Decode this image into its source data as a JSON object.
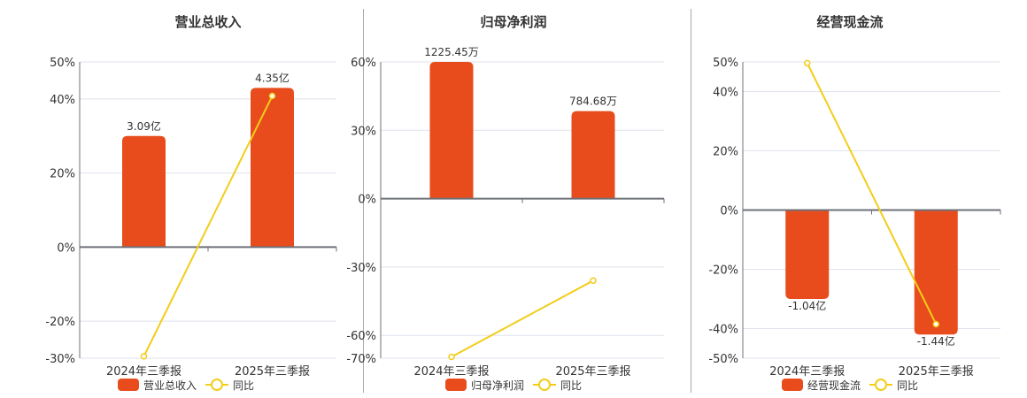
{
  "colors": {
    "bar": "#e84c1c",
    "line": "#f2cd1a",
    "grid": "#dfe3ee",
    "axis": "#6e7079",
    "text": "#333333",
    "divider": "#a8a8a8"
  },
  "panels": [
    {
      "title": "营业总收入",
      "legend": {
        "bar_label": "营业总收入",
        "line_label": "同比"
      },
      "x_labels": [
        "2024年三季报",
        "2025年三季报"
      ],
      "y_ticks": [
        "50%",
        "40%",
        "20%",
        "0%",
        "-20%",
        "-30%"
      ],
      "bar_labels": [
        "3.09亿",
        "4.35亿"
      ]
    },
    {
      "title": "归母净利润",
      "legend": {
        "bar_label": "归母净利润",
        "line_label": "同比"
      },
      "x_labels": [
        "2024年三季报",
        "2025年三季报"
      ],
      "y_ticks": [
        "60%",
        "30%",
        "0%",
        "-30%",
        "-60%",
        "-70%"
      ],
      "bar_labels": [
        "1225.45万",
        "784.68万"
      ]
    },
    {
      "title": "经营现金流",
      "legend": {
        "bar_label": "经营现金流",
        "line_label": "同比"
      },
      "x_labels": [
        "2024年三季报",
        "2025年三季报"
      ],
      "y_ticks": [
        "50%",
        "40%",
        "20%",
        "0%",
        "-20%",
        "-40%",
        "-50%"
      ],
      "bar_labels": [
        "-1.04亿",
        "-1.44亿"
      ]
    }
  ],
  "chart_data": [
    {
      "type": "bar+line",
      "title": "营业总收入",
      "categories": [
        "2024年三季报",
        "2025年三季报"
      ],
      "series": [
        {
          "name": "营业总收入",
          "type": "bar",
          "values": [
            3.09,
            4.35
          ],
          "unit": "亿",
          "labels": [
            "3.09亿",
            "4.35亿"
          ],
          "bar_height_pct_axis": [
            30,
            43
          ]
        },
        {
          "name": "同比",
          "type": "line",
          "values": [
            -29.5,
            40.8
          ],
          "unit": "%"
        }
      ],
      "ylim": [
        -30,
        50
      ],
      "yticks": [
        -30,
        -20,
        0,
        20,
        40,
        50
      ],
      "grid": true,
      "legend_position": "bottom"
    },
    {
      "type": "bar+line",
      "title": "归母净利润",
      "categories": [
        "2024年三季报",
        "2025年三季报"
      ],
      "series": [
        {
          "name": "归母净利润",
          "type": "bar",
          "values": [
            1225.45,
            784.68
          ],
          "unit": "万",
          "labels": [
            "1225.45万",
            "784.68万"
          ],
          "bar_height_pct_axis": [
            60,
            38.4
          ]
        },
        {
          "name": "同比",
          "type": "line",
          "values": [
            -69.4,
            -35.97
          ],
          "unit": "%"
        }
      ],
      "ylim": [
        -70,
        60
      ],
      "yticks": [
        -70,
        -60,
        -30,
        0,
        30,
        60
      ],
      "grid": true,
      "legend_position": "bottom"
    },
    {
      "type": "bar+line",
      "title": "经营现金流",
      "categories": [
        "2024年三季报",
        "2025年三季报"
      ],
      "series": [
        {
          "name": "经营现金流",
          "type": "bar",
          "values": [
            -1.04,
            -1.44
          ],
          "unit": "亿",
          "labels": [
            "-1.04亿",
            "-1.44亿"
          ],
          "bar_height_pct_axis": [
            -30,
            -42
          ]
        },
        {
          "name": "同比",
          "type": "line",
          "values": [
            49.6,
            -38.5
          ],
          "unit": "%"
        }
      ],
      "ylim": [
        -50,
        50
      ],
      "yticks": [
        -50,
        -40,
        -20,
        0,
        20,
        40,
        50
      ],
      "grid": true,
      "legend_position": "bottom"
    }
  ]
}
